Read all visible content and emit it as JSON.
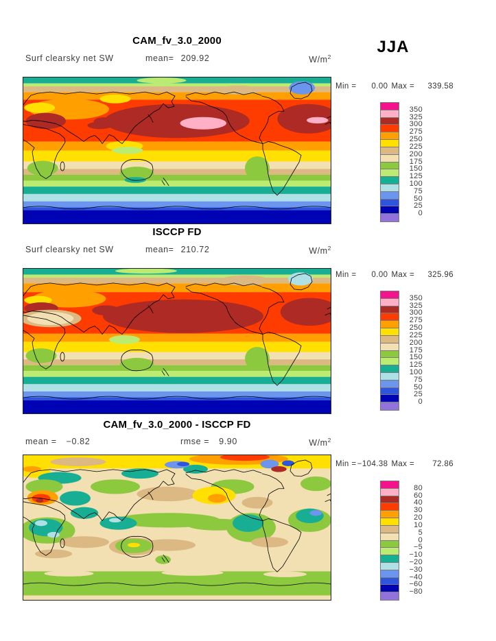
{
  "season_label": "JJA",
  "units": {
    "base": "W/m",
    "exp": "2"
  },
  "panels": [
    {
      "title": "CAM_fv_3.0_2000",
      "field_label": "Surf clearsky net SW",
      "mean_label": "mean=",
      "mean_value": "209.92",
      "min_label": "Min =",
      "min_value": "0.00",
      "max_label": "Max =",
      "max_value": "339.58"
    },
    {
      "title": "ISCCP FD",
      "field_label": "Surf clearsky net SW",
      "mean_label": "mean=",
      "mean_value": "210.72",
      "min_label": "Min =",
      "min_value": "0.00",
      "max_label": "Max =",
      "max_value": "325.96"
    },
    {
      "title": "CAM_fv_3.0_2000 - ISCCP FD",
      "mean_label": "mean =",
      "mean_value": "−0.82",
      "rmse_label": "rmse =",
      "rmse_value": "9.90",
      "min_label": "Min =",
      "min_value": "−104.38",
      "max_label": "Max =",
      "max_value": "72.86"
    }
  ],
  "chart_data": {
    "type": "heatmap",
    "subtype": "filled-contour-global-maps",
    "season": "JJA",
    "variable": "Surf clearsky net SW",
    "units": "W/m2",
    "palette_top_to_bottom": [
      "#F5128C",
      "#FFB0C6",
      "#AE2A24",
      "#FF3C00",
      "#FFA000",
      "#FFE000",
      "#DCB882",
      "#F2DFB2",
      "#8DC93F",
      "#BBEC71",
      "#17AE93",
      "#AEE0E6",
      "#6C95EE",
      "#2F55DF",
      "#0003B4",
      "#9173DB"
    ],
    "panels": [
      {
        "name": "CAM_fv_3.0_2000",
        "mean": 209.92,
        "min": 0.0,
        "max": 339.58,
        "levels": [
          350,
          325,
          300,
          275,
          250,
          225,
          200,
          175,
          150,
          125,
          100,
          75,
          50,
          25,
          0
        ],
        "render": {
          "bands": [
            [
              0.0,
              0.045,
              "#17AE93"
            ],
            [
              0.045,
              0.065,
              "#BBEC71"
            ],
            [
              0.065,
              0.105,
              "#DCB882"
            ],
            [
              0.105,
              0.155,
              "#FFA000"
            ],
            [
              0.155,
              0.44,
              "#FF3C00"
            ],
            [
              0.44,
              0.5,
              "#FFA000"
            ],
            [
              0.5,
              0.575,
              "#FFE000"
            ],
            [
              0.575,
              0.625,
              "#F2DFB2"
            ],
            [
              0.625,
              0.665,
              "#DCB882"
            ],
            [
              0.665,
              0.705,
              "#8DC93F"
            ],
            [
              0.705,
              0.745,
              "#BBEC71"
            ],
            [
              0.745,
              0.795,
              "#17AE93"
            ],
            [
              0.795,
              0.845,
              "#AEE0E6"
            ],
            [
              0.845,
              0.885,
              "#6C95EE"
            ],
            [
              0.885,
              0.905,
              "#2F55DF"
            ],
            [
              0.905,
              1.0,
              "#0003B4"
            ]
          ],
          "blobs": [
            [
              0.45,
              0.025,
              0.08,
              0.02,
              "#BBEC71"
            ],
            [
              0.7,
              0.09,
              0.07,
              0.03,
              "#DCB882"
            ],
            [
              0.15,
              0.22,
              0.13,
              0.07,
              "#FFA000"
            ],
            [
              0.055,
              0.21,
              0.05,
              0.035,
              "#FFE000"
            ],
            [
              0.3,
              0.15,
              0.05,
              0.03,
              "#FFE000"
            ],
            [
              0.5,
              0.3,
              0.235,
              0.115,
              "#AE2A24"
            ],
            [
              0.925,
              0.285,
              0.1,
              0.1,
              "#AE2A24"
            ],
            [
              0.585,
              0.315,
              0.075,
              0.042,
              "#FFB0C6"
            ],
            [
              0.955,
              0.295,
              0.035,
              0.022,
              "#FFB0C6"
            ],
            [
              0.075,
              0.3,
              0.065,
              0.055,
              "#AE2A24"
            ],
            [
              0.26,
              0.305,
              0.03,
              0.03,
              "#AE2A24"
            ],
            [
              0.25,
              0.33,
              0.04,
              0.025,
              "#AE2A24"
            ],
            [
              0.33,
              0.47,
              0.06,
              0.035,
              "#FFE000"
            ],
            [
              0.34,
              0.5,
              0.05,
              0.025,
              "#BBEC71"
            ],
            [
              0.905,
              0.075,
              0.042,
              0.045,
              "#6C95EE"
            ],
            [
              0.76,
              0.62,
              0.04,
              0.08,
              "#8DC93F"
            ],
            [
              0.065,
              0.62,
              0.05,
              0.05,
              "#8DC93F"
            ],
            [
              0.37,
              0.655,
              0.055,
              0.045,
              "#8DC93F"
            ],
            [
              0.365,
              0.7,
              0.035,
              0.02,
              "#17AE93"
            ]
          ]
        }
      },
      {
        "name": "ISCCP FD",
        "mean": 210.72,
        "min": 0.0,
        "max": 325.96,
        "levels": [
          350,
          325,
          300,
          275,
          250,
          225,
          200,
          175,
          150,
          125,
          100,
          75,
          50,
          25,
          0
        ],
        "render": {
          "bands": [
            [
              0.0,
              0.045,
              "#17AE93"
            ],
            [
              0.045,
              0.065,
              "#BBEC71"
            ],
            [
              0.065,
              0.105,
              "#DCB882"
            ],
            [
              0.105,
              0.165,
              "#FFA000"
            ],
            [
              0.165,
              0.45,
              "#FF3C00"
            ],
            [
              0.45,
              0.505,
              "#FFA000"
            ],
            [
              0.505,
              0.575,
              "#FFE000"
            ],
            [
              0.575,
              0.625,
              "#F2DFB2"
            ],
            [
              0.625,
              0.665,
              "#DCB882"
            ],
            [
              0.665,
              0.705,
              "#8DC93F"
            ],
            [
              0.705,
              0.745,
              "#BBEC71"
            ],
            [
              0.745,
              0.795,
              "#17AE93"
            ],
            [
              0.795,
              0.845,
              "#AEE0E6"
            ],
            [
              0.845,
              0.885,
              "#6C95EE"
            ],
            [
              0.885,
              0.905,
              "#2F55DF"
            ],
            [
              0.905,
              1.0,
              "#0003B4"
            ]
          ],
          "blobs": [
            [
              0.4,
              0.02,
              0.1,
              0.018,
              "#BBEC71"
            ],
            [
              0.72,
              0.085,
              0.08,
              0.035,
              "#DCB882"
            ],
            [
              0.15,
              0.21,
              0.12,
              0.06,
              "#FFA000"
            ],
            [
              0.05,
              0.22,
              0.045,
              0.03,
              "#FFE000"
            ],
            [
              0.52,
              0.33,
              0.26,
              0.115,
              "#AE2A24"
            ],
            [
              0.93,
              0.3,
              0.095,
              0.095,
              "#AE2A24"
            ],
            [
              0.27,
              0.29,
              0.045,
              0.035,
              "#AE2A24"
            ],
            [
              0.06,
              0.275,
              0.055,
              0.04,
              "#AE2A24"
            ],
            [
              0.09,
              0.345,
              0.1,
              0.06,
              "#DCB882"
            ],
            [
              0.09,
              0.345,
              0.075,
              0.045,
              "#F2DFB2"
            ],
            [
              0.9,
              0.075,
              0.04,
              0.045,
              "#AEE0E6"
            ],
            [
              0.33,
              0.49,
              0.05,
              0.03,
              "#BBEC71"
            ],
            [
              0.76,
              0.62,
              0.04,
              0.08,
              "#8DC93F"
            ],
            [
              0.06,
              0.6,
              0.05,
              0.05,
              "#8DC93F"
            ],
            [
              0.37,
              0.66,
              0.055,
              0.045,
              "#8DC93F"
            ]
          ]
        }
      },
      {
        "name": "CAM_fv_3.0_2000 - ISCCP FD",
        "mean": -0.82,
        "rmse": 9.9,
        "min": -104.38,
        "max": 72.86,
        "levels": [
          80,
          60,
          40,
          30,
          20,
          10,
          5,
          0,
          -5,
          -10,
          -20,
          -30,
          -40,
          -60,
          -80
        ],
        "render": {
          "bands": [
            [
              0.0,
              1.0,
              "#F2DFB2"
            ],
            [
              0.0,
              0.095,
              "#FFE000"
            ],
            [
              0.8,
              0.965,
              "#8DC93F"
            ],
            [
              0.965,
              1.0,
              "#F2DFB2"
            ]
          ],
          "blobs": [
            [
              0.7,
              0.03,
              0.16,
              0.04,
              "#FFA000"
            ],
            [
              0.72,
              0.018,
              0.08,
              0.025,
              "#FF3C00"
            ],
            [
              0.18,
              0.05,
              0.09,
              0.03,
              "#DCB882"
            ],
            [
              0.04,
              0.12,
              0.05,
              0.04,
              "#FFE000"
            ],
            [
              0.03,
              0.1,
              0.03,
              0.02,
              "#FFA000"
            ],
            [
              0.12,
              0.16,
              0.07,
              0.04,
              "#17AE93"
            ],
            [
              0.38,
              0.13,
              0.06,
              0.035,
              "#17AE93"
            ],
            [
              0.56,
              0.1,
              0.04,
              0.03,
              "#17AE93"
            ],
            [
              0.5,
              0.07,
              0.04,
              0.025,
              "#6C95EE"
            ],
            [
              0.52,
              0.065,
              0.02,
              0.015,
              "#2F55DF"
            ],
            [
              0.8,
              0.065,
              0.03,
              0.03,
              "#6C95EE"
            ],
            [
              0.86,
              0.06,
              0.02,
              0.02,
              "#2F55DF"
            ],
            [
              0.83,
              0.1,
              0.025,
              0.02,
              "#AE2A24"
            ],
            [
              0.07,
              0.22,
              0.06,
              0.05,
              "#8DC93F"
            ],
            [
              0.3,
              0.22,
              0.08,
              0.05,
              "#8DC93F"
            ],
            [
              0.68,
              0.22,
              0.07,
              0.05,
              "#8DC93F"
            ],
            [
              0.95,
              0.2,
              0.05,
              0.05,
              "#8DC93F"
            ],
            [
              0.47,
              0.27,
              0.1,
              0.05,
              "#DCB882"
            ],
            [
              0.76,
              0.33,
              0.05,
              0.04,
              "#DCB882"
            ],
            [
              0.62,
              0.28,
              0.07,
              0.06,
              "#FFE000"
            ],
            [
              0.63,
              0.3,
              0.03,
              0.03,
              "#FFA000"
            ],
            [
              0.17,
              0.3,
              0.05,
              0.05,
              "#17AE93"
            ],
            [
              0.065,
              0.295,
              0.05,
              0.05,
              "#FFA000"
            ],
            [
              0.06,
              0.3,
              0.03,
              0.03,
              "#FF3C00"
            ],
            [
              0.055,
              0.315,
              0.012,
              0.015,
              "#AE2A24"
            ],
            [
              0.47,
              0.45,
              0.17,
              0.05,
              "#8DC93F"
            ],
            [
              0.63,
              0.48,
              0.1,
              0.04,
              "#8DC93F"
            ],
            [
              0.2,
              0.4,
              0.045,
              0.04,
              "#17AE93"
            ],
            [
              0.31,
              0.47,
              0.06,
              0.045,
              "#17AE93"
            ],
            [
              0.3,
              0.45,
              0.02,
              0.015,
              "#AEE0E6"
            ],
            [
              0.08,
              0.52,
              0.09,
              0.09,
              "#8DC93F"
            ],
            [
              0.075,
              0.5,
              0.055,
              0.06,
              "#17AE93"
            ],
            [
              0.06,
              0.47,
              0.02,
              0.02,
              "#AEE0E6"
            ],
            [
              0.1,
              0.55,
              0.02,
              0.02,
              "#AEE0E6"
            ],
            [
              0.74,
              0.5,
              0.08,
              0.1,
              "#8DC93F"
            ],
            [
              0.73,
              0.47,
              0.05,
              0.06,
              "#17AE93"
            ],
            [
              0.93,
              0.45,
              0.07,
              0.08,
              "#8DC93F"
            ],
            [
              0.93,
              0.42,
              0.045,
              0.05,
              "#17AE93"
            ],
            [
              0.95,
              0.4,
              0.02,
              0.02,
              "#6C95EE"
            ],
            [
              0.2,
              0.6,
              0.08,
              0.04,
              "#DCB882"
            ],
            [
              0.47,
              0.62,
              0.09,
              0.04,
              "#DCB882"
            ],
            [
              0.8,
              0.6,
              0.06,
              0.035,
              "#DCB882"
            ],
            [
              0.1,
              0.68,
              0.06,
              0.03,
              "#DCB882"
            ],
            [
              0.36,
              0.63,
              0.08,
              0.06,
              "#DCB882"
            ],
            [
              0.36,
              0.625,
              0.06,
              0.05,
              "#8DC93F"
            ],
            [
              0.36,
              0.62,
              0.02,
              0.015,
              "#FFE000"
            ],
            [
              0.455,
              0.72,
              0.025,
              0.03,
              "#8DC93F"
            ],
            [
              0.15,
              0.815,
              0.08,
              0.02,
              "#F2DFB2"
            ],
            [
              0.55,
              0.81,
              0.1,
              0.02,
              "#F2DFB2"
            ],
            [
              0.85,
              0.82,
              0.07,
              0.02,
              "#F2DFB2"
            ]
          ]
        }
      }
    ]
  }
}
